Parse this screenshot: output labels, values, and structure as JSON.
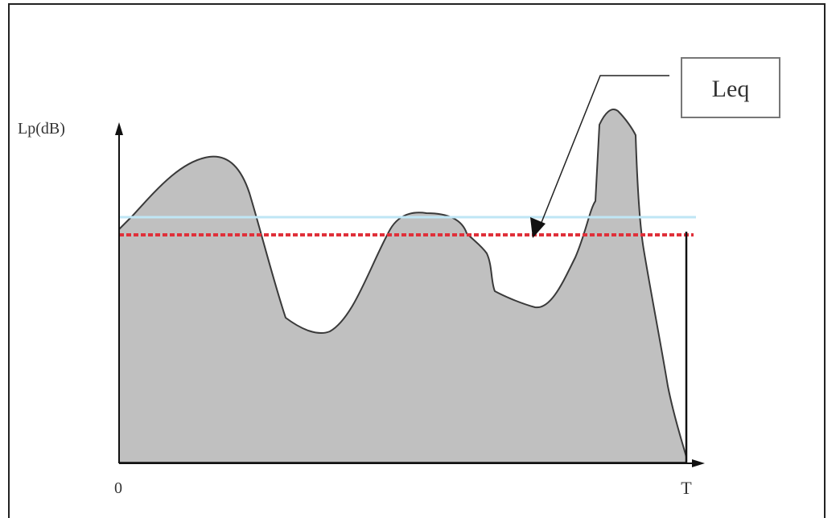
{
  "diagram": {
    "y_axis_label": "Lp(dB)",
    "x_origin_label": "0",
    "x_end_label": "T",
    "callout_label": "Leq",
    "colors": {
      "fill": "#c0c0c0",
      "outline": "#3a3a3a",
      "axis": "#111111",
      "leq_line": "#e0303a",
      "reference_line": "#bfe6f5",
      "callout_border": "#777777"
    }
  }
}
